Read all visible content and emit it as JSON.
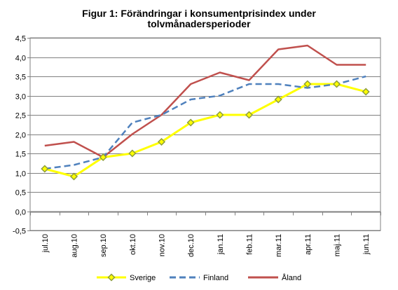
{
  "chart_data": {
    "type": "line",
    "title": "Figur 1: Förändringar i konsumentprisindex  under",
    "title_line2": "tolvmånadersperioder",
    "categories": [
      "jul.10",
      "aug.10",
      "sep.10",
      "okt.10",
      "nov.10",
      "dec.10",
      "jan.11",
      "feb.11",
      "mar.11",
      "apr.11",
      "maj.11",
      "jun.11"
    ],
    "ylim": [
      -0.5,
      4.5
    ],
    "yticks": [
      "4,5",
      "4,0",
      "3,5",
      "3,0",
      "2,5",
      "2,0",
      "1,5",
      "1,0",
      "0,5",
      "0,0",
      "-0,5"
    ],
    "ytick_values": [
      4.5,
      4.0,
      3.5,
      3.0,
      2.5,
      2.0,
      1.5,
      1.0,
      0.5,
      0.0,
      -0.5
    ],
    "grid": true,
    "legend_position": "bottom",
    "series": [
      {
        "name": "Sverige",
        "color": "#FFFF00",
        "marker": "diamond",
        "marker_color": "#8C9C3C",
        "values": [
          1.1,
          0.9,
          1.4,
          1.5,
          1.8,
          2.3,
          2.5,
          2.5,
          2.9,
          3.3,
          3.3,
          3.1
        ]
      },
      {
        "name": "Finland",
        "color": "#4F81BD",
        "dashed": true,
        "values": [
          1.1,
          1.2,
          1.4,
          2.3,
          2.5,
          2.9,
          3.0,
          3.3,
          3.3,
          3.2,
          3.3,
          3.5
        ]
      },
      {
        "name": "Åland",
        "color": "#C0504D",
        "values": [
          1.7,
          1.8,
          1.4,
          2.0,
          2.5,
          3.3,
          3.6,
          3.4,
          4.2,
          4.3,
          3.8,
          3.8
        ]
      }
    ]
  }
}
